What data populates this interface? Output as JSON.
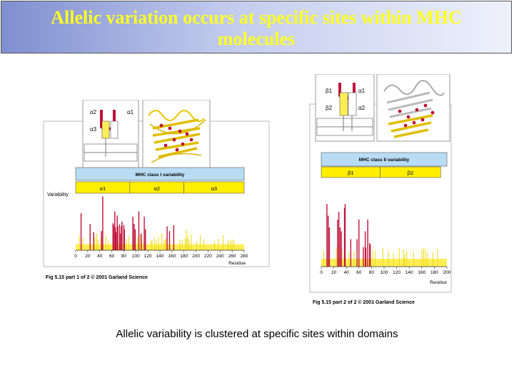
{
  "slide": {
    "title": "Allelic variation occurs at specific sites within MHC molecules",
    "subtitle": "Allelic variability is clustered at specific sites within domains"
  },
  "colors": {
    "bar": "#c0103a",
    "baseline": "#ffee55",
    "header": "#b8dcf4",
    "domain": "#ffee00"
  },
  "figure1": {
    "caption": "Fig 5.15 part 1 of 2  © 2001 Garland Science",
    "schematic_labels": [
      "α2",
      "α1",
      "α3"
    ],
    "ylabel": "Variability"
  },
  "figure2": {
    "caption": "Fig 5.15 part 2 of 2  © 2001 Garland Science",
    "schematic_labels": [
      "β1",
      "α1",
      "β2",
      "α2"
    ]
  },
  "chart_data": [
    {
      "type": "bar",
      "title": "MHC class I variability",
      "domains": [
        "α1",
        "α2",
        "α3"
      ],
      "domain_bounds": [
        0,
        90,
        180,
        280
      ],
      "xlabel": "Residue",
      "ylabel": "Variability",
      "xlim": [
        0,
        280
      ],
      "xticks": [
        0,
        20,
        40,
        60,
        80,
        100,
        120,
        140,
        160,
        180,
        200,
        220,
        240,
        260,
        280
      ],
      "ylim": [
        0,
        10
      ],
      "baseline": 1,
      "series": [
        {
          "values_x": [
            9,
            24,
            30,
            43,
            45,
            62,
            63,
            65,
            66,
            67,
            69,
            70,
            73,
            74,
            76,
            77,
            80,
            81,
            95,
            97,
            99,
            105,
            109,
            114,
            116,
            152,
            156,
            163
          ],
          "values_y": [
            6.2,
            4.4,
            3.0,
            3.2,
            9.0,
            4.5,
            4.2,
            6.5,
            3.8,
            3.0,
            5.8,
            4.0,
            4.3,
            2.8,
            4.0,
            4.8,
            4.2,
            3.5,
            5.6,
            4.4,
            3.5,
            6.5,
            2.8,
            5.6,
            3.5,
            4.0,
            3.2,
            4.2
          ]
        },
        {
          "values_x": [
            6,
            12,
            32,
            35,
            37,
            42,
            50,
            54,
            84,
            88,
            103,
            107,
            110,
            125,
            127,
            131,
            134,
            138,
            143,
            147,
            149,
            150,
            173,
            177,
            182,
            184,
            186,
            188,
            192,
            201,
            207,
            213,
            231,
            237,
            245,
            253,
            257,
            260,
            263
          ],
          "values_y": [
            2.5,
            2.0,
            2.2,
            2.8,
            1.8,
            2.0,
            2.5,
            1.6,
            1.8,
            2.4,
            2.0,
            2.6,
            1.6,
            1.6,
            1.8,
            2.2,
            1.6,
            2.2,
            2.8,
            1.6,
            1.8,
            2.0,
            1.8,
            1.8,
            2.0,
            3.4,
            2.4,
            1.8,
            2.6,
            1.5,
            2.5,
            1.8,
            1.5,
            1.9,
            2.6,
            1.8,
            1.6,
            1.8,
            1.7
          ]
        }
      ]
    },
    {
      "type": "bar",
      "title": "MHC class II variability",
      "domains": [
        "β1",
        "β2"
      ],
      "domain_bounds": [
        0,
        94,
        190
      ],
      "xlabel": "Residue",
      "xlim": [
        0,
        200
      ],
      "xticks": [
        0,
        20,
        40,
        60,
        80,
        100,
        120,
        140,
        160,
        180,
        200
      ],
      "ylim": [
        0,
        10
      ],
      "baseline": 1,
      "series": [
        {
          "values_x": [
            9,
            11,
            13,
            26,
            28,
            30,
            32,
            37,
            38,
            47,
            57,
            60,
            67,
            70,
            71,
            74,
            77,
            78
          ],
          "values_y": [
            8.0,
            6.5,
            5.0,
            6.0,
            7.0,
            5.0,
            4.5,
            7.5,
            8.0,
            3.5,
            3.5,
            6.0,
            2.5,
            4.5,
            2.4,
            6.0,
            3.0,
            2.8
          ]
        },
        {
          "values_x": [
            4,
            24,
            33,
            44,
            52,
            82,
            86,
            98,
            107,
            115,
            124,
            131,
            133,
            136,
            147,
            160,
            163,
            166,
            169,
            178,
            185
          ],
          "values_y": [
            2.0,
            2.5,
            2.2,
            1.8,
            2.0,
            2.2,
            2.0,
            2.4,
            2.0,
            1.8,
            2.4,
            2.2,
            1.6,
            2.0,
            2.0,
            2.3,
            2.3,
            2.3,
            1.8,
            1.8,
            2.3
          ]
        }
      ]
    }
  ]
}
